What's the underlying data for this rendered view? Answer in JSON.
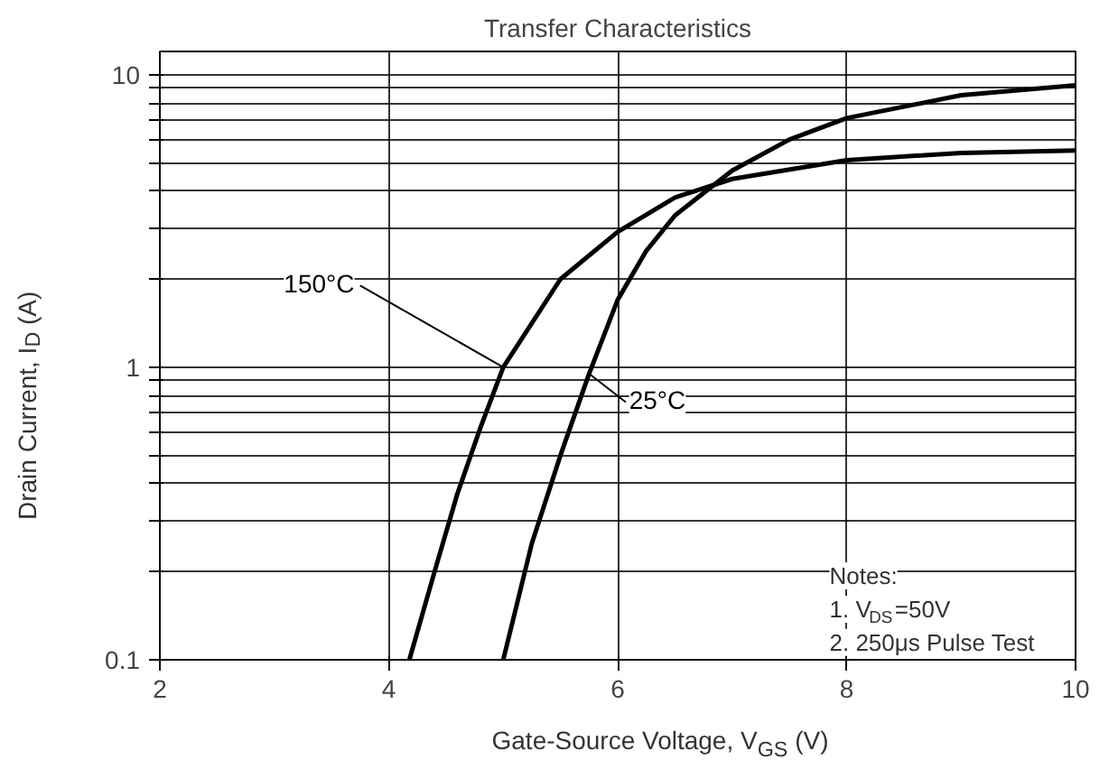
{
  "chart_data": {
    "type": "line",
    "title": "Transfer Characteristics",
    "xlabel": "Gate-Source Voltage, V$_{GS}$ (V)",
    "ylabel": "Drain Current, I$_{D}$ (A)",
    "log": "y",
    "grid": true,
    "marker": "none",
    "line_style": "solid",
    "xlim": [
      2,
      10
    ],
    "xticks": [
      2,
      4,
      6,
      8,
      10
    ],
    "ylim": [
      0.1,
      12
    ],
    "yticks": [
      0.1,
      {
        "value": 0.2,
        "label": null
      },
      {
        "value": 0.3,
        "label": null
      },
      {
        "value": 0.4,
        "label": null
      },
      {
        "value": 0.5,
        "label": null
      },
      {
        "value": 0.6,
        "label": null
      },
      {
        "value": 0.7,
        "label": null
      },
      {
        "value": 0.8,
        "label": null
      },
      {
        "value": 0.9,
        "label": null
      },
      1,
      {
        "value": 2,
        "label": null
      },
      {
        "value": 3,
        "label": null
      },
      {
        "value": 4,
        "label": null
      },
      {
        "value": 5,
        "label": null
      },
      {
        "value": 6,
        "label": null
      },
      {
        "value": 7,
        "label": null
      },
      {
        "value": 8,
        "label": null
      },
      {
        "value": 9,
        "label": null
      },
      10
    ],
    "series": [
      {
        "name": "25°C",
        "color": "#000000",
        "x": [
          5.0,
          5.25,
          5.5,
          5.75,
          6.0,
          6.25,
          6.5,
          7.0,
          7.5,
          8.0,
          9.0,
          10.0
        ],
        "values": [
          0.1,
          0.25,
          0.5,
          0.95,
          1.7,
          2.5,
          3.3,
          4.7,
          6.0,
          7.1,
          8.5,
          9.2
        ]
      },
      {
        "name": "150°C",
        "color": "#000000",
        "x": [
          4.18,
          4.4,
          4.6,
          4.8,
          5.0,
          5.5,
          6.0,
          6.5,
          7.0,
          8.0,
          9.0,
          10.0
        ],
        "values": [
          0.1,
          0.2,
          0.37,
          0.62,
          1.0,
          2.0,
          2.9,
          3.8,
          4.4,
          5.1,
          5.4,
          5.5
        ]
      }
    ],
    "annotations": [
      "Notes:",
      "1. V$_{DS}$=50V",
      "2. 250μs Pulse Test"
    ]
  }
}
